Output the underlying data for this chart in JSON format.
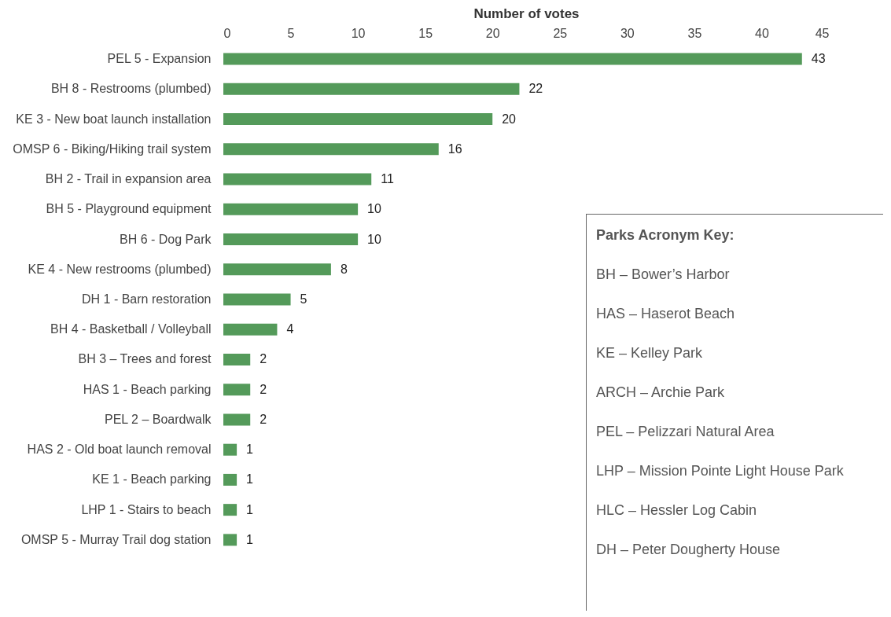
{
  "chart_data": {
    "type": "bar",
    "orientation": "horizontal",
    "xlabel": "Number of votes",
    "categories": [
      "PEL 5 - Expansion",
      "BH 8 - Restrooms (plumbed)",
      "KE 3 - New boat launch installation",
      "OMSP 6 - Biking/Hiking trail system",
      "BH 2 - Trail in expansion area",
      "BH 5 - Playground equipment",
      "BH 6 - Dog Park",
      "KE 4 - New restrooms (plumbed)",
      "DH 1 - Barn restoration",
      "BH 4 - Basketball / Volleyball",
      "BH 3 – Trees and forest",
      "HAS 1 - Beach parking",
      "PEL 2 – Boardwalk",
      "HAS 2 - Old boat launch removal",
      "KE 1 - Beach parking",
      "LHP 1 - Stairs to beach",
      "OMSP 5 - Murray Trail dog station"
    ],
    "values": [
      43,
      22,
      20,
      16,
      11,
      10,
      10,
      8,
      5,
      4,
      2,
      2,
      2,
      1,
      1,
      1,
      1
    ],
    "color": "#549a5a",
    "data_labels": true,
    "xlim": [
      0,
      45
    ],
    "xticks": [
      0,
      5,
      10,
      15,
      20,
      25,
      30,
      35,
      40,
      45
    ],
    "annotations": [
      "Parks Acronym Key:",
      "BH – Bower’s Harbor",
      "HAS – Haserot Beach",
      "KE – Kelley Park",
      "ARCH – Archie Park",
      "PEL – Pelizzari Natural Area",
      "LHP – Mission Pointe Light House Park",
      "HLC – Hessler Log Cabin",
      "DH – Peter Dougherty House"
    ]
  }
}
